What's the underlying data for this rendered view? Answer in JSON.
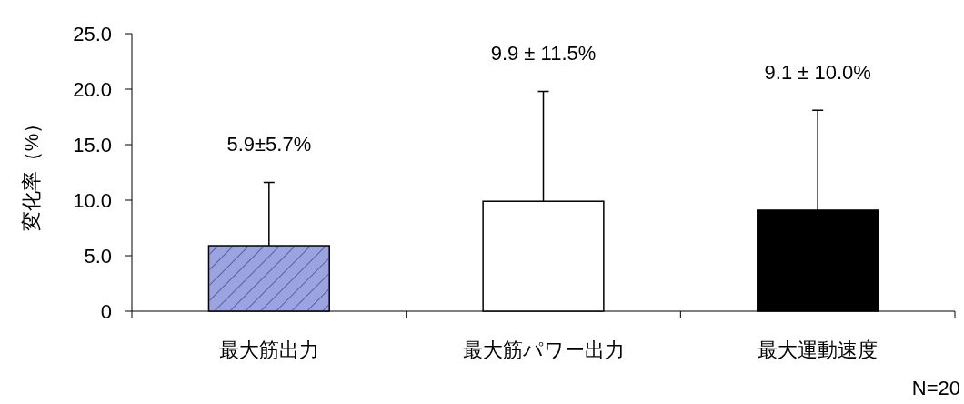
{
  "chart_data": {
    "type": "bar",
    "ylabel": "変化率（%）",
    "categories": [
      "最大筋出力",
      "最大筋パワー出力",
      "最大運動速度"
    ],
    "values": [
      5.9,
      9.9,
      9.1
    ],
    "colors": [
      "#9ba4de",
      "#ffffff",
      "#000000"
    ],
    "errors": [
      [
        5.9,
        11.6
      ],
      [
        9.9,
        19.8
      ],
      [
        9.1,
        18.1
      ]
    ],
    "ylim": [
      0,
      25
    ],
    "yticks": [
      0,
      {
        "value": 5,
        "label": "5.0"
      },
      {
        "value": 10,
        "label": "10.0"
      },
      {
        "value": 15,
        "label": "15.0"
      },
      {
        "value": 20,
        "label": "20.0"
      },
      {
        "value": 25,
        "label": "25.0"
      }
    ],
    "annotations": [
      {
        "text": "5.9±5.7%",
        "x": "最大筋出力",
        "y": 11.6
      },
      {
        "text": "9.9 ± 11.5%",
        "x": "最大筋パワー出力",
        "y": 19.8
      },
      {
        "text": "9.1 ± 10.0%",
        "x": "最大運動速度",
        "y": 18.1
      },
      "N=20"
    ],
    "grid": false
  }
}
